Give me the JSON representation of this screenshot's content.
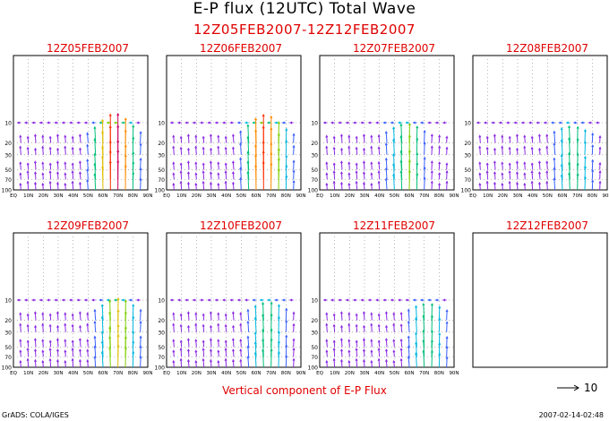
{
  "title": "E-P flux (12UTC) Total Wave",
  "subtitle": "12Z05FEB2007-12Z12FEB2007",
  "caption": "Vertical component of E-P Flux",
  "credit": "GrADS: COLA/IGES",
  "timestamp": "2007-02-14-02:48",
  "reference_vector_label": "10",
  "colors": {
    "title": "#000000",
    "red_text": "#e00000",
    "grid": "#888888"
  },
  "chart_data": {
    "type": "vector-field",
    "x_tick_labels": [
      "EQ",
      "10N",
      "20N",
      "30N",
      "40N",
      "50N",
      "60N",
      "70N",
      "80N",
      "90N"
    ],
    "y_tick_labels": [
      "10",
      "20",
      "30",
      "50",
      "70",
      "100"
    ],
    "y_levels_hpa": [
      10,
      20,
      30,
      50,
      70,
      100
    ],
    "x_range": [
      0,
      90
    ],
    "y_range_hpa": [
      100,
      1
    ],
    "grid": true,
    "reference_vector": 10,
    "panels": [
      {
        "label": "12Z05FEB2007",
        "has_data": true,
        "jet_lat": 68,
        "strength": 1.0
      },
      {
        "label": "12Z06FEB2007",
        "has_data": true,
        "jet_lat": 66,
        "strength": 0.95
      },
      {
        "label": "12Z07FEB2007",
        "has_data": true,
        "jet_lat": 58,
        "strength": 0.6
      },
      {
        "label": "12Z08FEB2007",
        "has_data": true,
        "jet_lat": 66,
        "strength": 0.5
      },
      {
        "label": "12Z09FEB2007",
        "has_data": true,
        "jet_lat": 70,
        "strength": 0.7
      },
      {
        "label": "12Z10FEB2007",
        "has_data": true,
        "jet_lat": 68,
        "strength": 0.55
      },
      {
        "label": "12Z11FEB2007",
        "has_data": true,
        "jet_lat": 72,
        "strength": 0.5
      },
      {
        "label": "12Z12FEB2007",
        "has_data": false
      }
    ]
  }
}
